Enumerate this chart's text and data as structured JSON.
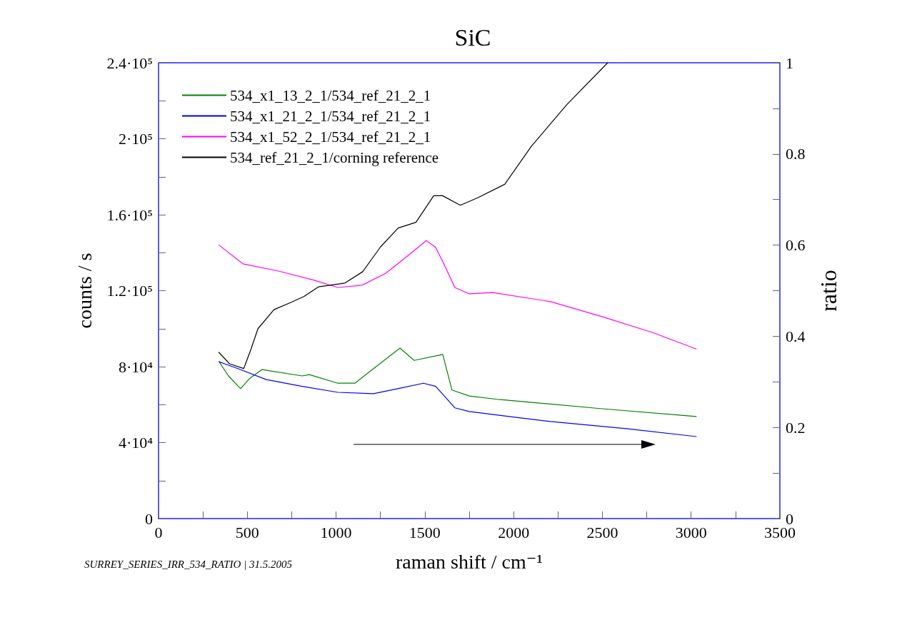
{
  "chart_data": {
    "type": "line",
    "title": "SiC",
    "xlabel": "raman shift / cm⁻¹",
    "ylabel": "counts / s",
    "y2label": "ratio",
    "annotations": [
      "SURREY_SERIES_IRR_534_RATIO | 31.5.2005"
    ],
    "legend": "top left",
    "grid": false,
    "xlim": [
      0,
      3500
    ],
    "xticks": [
      0,
      {
        "value": 250,
        "label": null
      },
      500,
      {
        "value": 750,
        "label": null
      },
      1000,
      {
        "value": 1250,
        "label": null
      },
      1500,
      {
        "value": 1750,
        "label": null
      },
      2000,
      {
        "value": 2250,
        "label": null
      },
      2500,
      {
        "value": 2750,
        "label": null
      },
      3000,
      {
        "value": 3250,
        "label": null
      },
      3500
    ],
    "ylim": [
      0,
      240000
    ],
    "yticks": [
      {
        "value": 0,
        "label": "0"
      },
      {
        "value": 20000,
        "label": null
      },
      {
        "value": 40000,
        "label": "4·10⁴"
      },
      {
        "value": 60000,
        "label": null
      },
      {
        "value": 80000,
        "label": "8·10⁴"
      },
      {
        "value": 100000,
        "label": null
      },
      {
        "value": 120000,
        "label": "1.2·10⁵"
      },
      {
        "value": 140000,
        "label": null
      },
      {
        "value": 160000,
        "label": "1.6·10⁵"
      },
      {
        "value": 180000,
        "label": null
      },
      {
        "value": 200000,
        "label": "2·10⁵"
      },
      {
        "value": 220000,
        "label": null
      },
      {
        "value": 240000,
        "label": "2.4·10⁵"
      }
    ],
    "y2lim": [
      0,
      1
    ],
    "y2ticks": [
      0,
      {
        "value": 0.1,
        "label": null
      },
      0.2,
      {
        "value": 0.3,
        "label": null
      },
      0.4,
      {
        "value": 0.5,
        "label": null
      },
      0.6,
      {
        "value": 0.7,
        "label": null
      },
      0.8,
      {
        "value": 0.9,
        "label": null
      },
      1
    ],
    "series": [
      {
        "name": "534_x1_13_2_1/534_ref_21_2_1",
        "color": "#008000",
        "axis": "y2",
        "x": [
          341,
          394,
          462,
          515,
          583,
          809,
          849,
          1010,
          1106,
          1211,
          1360,
          1440,
          1601,
          1653,
          1750,
          1923,
          2015,
          2498,
          3029
        ],
        "values": [
          0.344,
          0.313,
          0.285,
          0.308,
          0.327,
          0.313,
          0.316,
          0.297,
          0.297,
          0.329,
          0.374,
          0.347,
          0.36,
          0.282,
          0.269,
          0.261,
          0.258,
          0.241,
          0.224
        ]
      },
      {
        "name": "534_x1_21_2_1/534_ref_21_2_1",
        "color": "#0000ff",
        "axis": "y2",
        "x": [
          341,
          447,
          607,
          809,
          1010,
          1211,
          1348,
          1492,
          1561,
          1669,
          1750,
          2015,
          2208,
          2643,
          3029
        ],
        "values": [
          0.344,
          0.329,
          0.305,
          0.29,
          0.277,
          0.274,
          0.285,
          0.297,
          0.29,
          0.243,
          0.235,
          0.222,
          0.213,
          0.197,
          0.18
        ]
      },
      {
        "name": "534_x1_52_2_1/534_ref_21_2_1",
        "color": "#ff00ff",
        "axis": "y2",
        "x": [
          341,
          475,
          676,
          877,
          1010,
          1146,
          1279,
          1412,
          1508,
          1561,
          1613,
          1669,
          1750,
          1883,
          2208,
          2498,
          2784,
          3029
        ],
        "values": [
          0.6,
          0.559,
          0.543,
          0.523,
          0.507,
          0.512,
          0.538,
          0.579,
          0.61,
          0.595,
          0.554,
          0.507,
          0.493,
          0.496,
          0.476,
          0.443,
          0.408,
          0.372
        ]
      },
      {
        "name": "534_ref_21_2_1/corning reference",
        "color": "#000000",
        "axis": "y",
        "x": [
          340,
          400,
          480,
          520,
          560,
          650,
          750,
          820,
          900,
          1050,
          1150,
          1250,
          1350,
          1450,
          1550,
          1600,
          1700,
          1800,
          1950,
          2100,
          2300,
          2530
        ],
        "values": [
          87500,
          81500,
          79000,
          89000,
          100000,
          110000,
          114000,
          117000,
          122000,
          124000,
          130000,
          143000,
          153000,
          156000,
          170000,
          170000,
          165000,
          169000,
          176000,
          196000,
          218000,
          240000
        ]
      }
    ]
  }
}
